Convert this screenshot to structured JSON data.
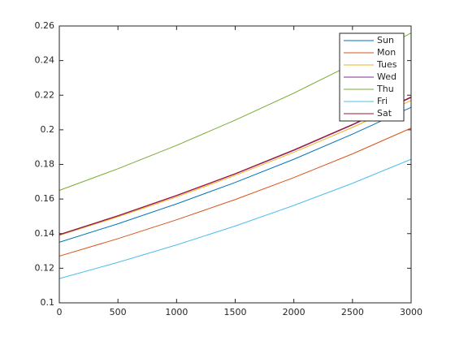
{
  "chart_data": {
    "type": "line",
    "x": [
      0,
      500,
      1000,
      1500,
      2000,
      2500,
      3000
    ],
    "series": [
      {
        "name": "Sun",
        "color": "#0072BD",
        "values": [
          0.135,
          0.1457,
          0.1572,
          0.1696,
          0.183,
          0.1975,
          0.213
        ]
      },
      {
        "name": "Mon",
        "color": "#D95319",
        "values": [
          0.127,
          0.1371,
          0.148,
          0.1597,
          0.1724,
          0.1861,
          0.201
        ]
      },
      {
        "name": "Tues",
        "color": "#EDB120",
        "values": [
          0.139,
          0.1497,
          0.1612,
          0.1737,
          0.187,
          0.2014,
          0.217
        ]
      },
      {
        "name": "Wed",
        "color": "#7E2F8E",
        "values": [
          0.1393,
          0.1502,
          0.1619,
          0.1745,
          0.1881,
          0.2028,
          0.2186
        ]
      },
      {
        "name": "Thu",
        "color": "#77AC30",
        "values": [
          0.165,
          0.1775,
          0.191,
          0.2056,
          0.2212,
          0.238,
          0.256
        ]
      },
      {
        "name": "Fri",
        "color": "#4DBEEE",
        "values": [
          0.114,
          0.1234,
          0.1335,
          0.1444,
          0.1563,
          0.1691,
          0.183
        ]
      },
      {
        "name": "Sat",
        "color": "#A2142F",
        "values": [
          0.1395,
          0.1504,
          0.1621,
          0.1747,
          0.1884,
          0.2031,
          0.219
        ]
      }
    ],
    "xlim": [
      0,
      3000
    ],
    "xticks": [
      0,
      500,
      1000,
      1500,
      2000,
      2500,
      3000
    ],
    "ylim": [
      0.1,
      0.26
    ],
    "yticks": [
      0.1,
      0.12,
      0.14,
      0.16,
      0.18,
      0.2,
      0.22,
      0.24,
      0.26
    ],
    "grid": false,
    "legend": "northeast"
  }
}
